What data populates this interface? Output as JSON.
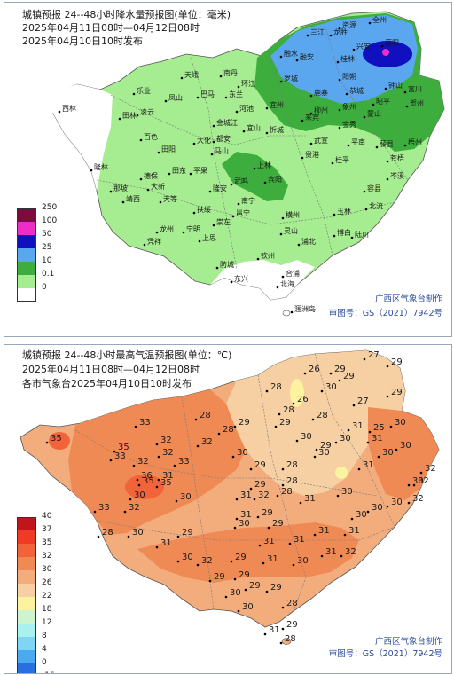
{
  "rain": {
    "title": "城镇预报 24--48小时降水量预报图(单位：毫米)",
    "time_range": "2025年04月11日08时—04月12日08时",
    "issued": "2025年04月10日10时发布",
    "legend": [
      {
        "label": "250",
        "color": "#7a0d3d"
      },
      {
        "label": "100",
        "color": "#ee2cc8"
      },
      {
        "label": "50",
        "color": "#1010c0"
      },
      {
        "label": "25",
        "color": "#5aa7ef"
      },
      {
        "label": "10",
        "color": "#3dae3d"
      },
      {
        "label": "0.1",
        "color": "#a6ec90"
      },
      {
        "label": "0",
        "color": "#ffffff"
      }
    ],
    "credit": "广西区气象台制作",
    "approval": "审图号：GS（2021）7942号",
    "places": [
      {
        "name": "全州"
      },
      {
        "name": "资源"
      },
      {
        "name": "兴安"
      },
      {
        "name": "三江"
      },
      {
        "name": "龙胜"
      },
      {
        "name": "灌阳"
      },
      {
        "name": "融水"
      },
      {
        "name": "融安"
      },
      {
        "name": "桂林"
      },
      {
        "name": "阳朔"
      },
      {
        "name": "恭城"
      },
      {
        "name": "钟山"
      },
      {
        "name": "富川"
      },
      {
        "name": "贺州"
      },
      {
        "name": "昭平"
      },
      {
        "name": "蒙山"
      },
      {
        "name": "鹿寨"
      },
      {
        "name": "柳州"
      },
      {
        "name": "象州"
      },
      {
        "name": "金秀"
      },
      {
        "name": "平南"
      },
      {
        "name": "藤县"
      },
      {
        "name": "梧州"
      },
      {
        "name": "苍梧"
      },
      {
        "name": "岑溪"
      },
      {
        "name": "容县"
      },
      {
        "name": "北流"
      },
      {
        "name": "玉林"
      },
      {
        "name": "博白"
      },
      {
        "name": "陆川"
      },
      {
        "name": "贵港"
      },
      {
        "name": "桂平"
      },
      {
        "name": "武宣"
      },
      {
        "name": "来宾"
      },
      {
        "name": "忻城"
      },
      {
        "name": "宜州"
      },
      {
        "name": "河池"
      },
      {
        "name": "环江"
      },
      {
        "name": "南丹"
      },
      {
        "name": "天峨"
      },
      {
        "name": "东兰"
      },
      {
        "name": "巴马"
      },
      {
        "name": "凤山"
      },
      {
        "name": "乐业"
      },
      {
        "name": "凌云"
      },
      {
        "name": "田林"
      },
      {
        "name": "西林"
      },
      {
        "name": "隆林"
      },
      {
        "name": "百色"
      },
      {
        "name": "田阳"
      },
      {
        "name": "田东"
      },
      {
        "name": "平果"
      },
      {
        "name": "德保"
      },
      {
        "name": "那坡"
      },
      {
        "name": "靖西"
      },
      {
        "name": "大新"
      },
      {
        "name": "天等"
      },
      {
        "name": "隆安"
      },
      {
        "name": "马山"
      },
      {
        "name": "上林"
      },
      {
        "name": "宾阳"
      },
      {
        "name": "武鸣"
      },
      {
        "name": "南宁"
      },
      {
        "name": "横州"
      },
      {
        "name": "邕宁"
      },
      {
        "name": "扶绥"
      },
      {
        "name": "崇左"
      },
      {
        "name": "龙州"
      },
      {
        "name": "凭祥"
      },
      {
        "name": "宁明"
      },
      {
        "name": "上思"
      },
      {
        "name": "防城"
      },
      {
        "name": "东兴"
      },
      {
        "name": "钦州"
      },
      {
        "name": "灵山"
      },
      {
        "name": "浦北"
      },
      {
        "name": "合浦"
      },
      {
        "name": "北海"
      },
      {
        "name": "涠洲岛"
      },
      {
        "name": "都安"
      },
      {
        "name": "大化"
      },
      {
        "name": "罗城"
      },
      {
        "name": "宜山"
      },
      {
        "name": "金城江"
      }
    ]
  },
  "temp": {
    "title": "城镇预报 24--48小时最高气温预报图(单位：℃)",
    "time_range": "2025年04月11日08时—04月12日08时",
    "issued": "各市气象台2025年04月10日10时发布",
    "legend": [
      {
        "label": "40",
        "color": "#c1151b"
      },
      {
        "label": "37",
        "color": "#ef3b24"
      },
      {
        "label": "35",
        "color": "#f2633a"
      },
      {
        "label": "32",
        "color": "#f08a55"
      },
      {
        "label": "30",
        "color": "#f3ad7d"
      },
      {
        "label": "26",
        "color": "#f6cfa3"
      },
      {
        "label": "22",
        "color": "#fbf3a0"
      },
      {
        "label": "18",
        "color": "#cdf4ce"
      },
      {
        "label": "12",
        "color": "#a8f2ee"
      },
      {
        "label": "8",
        "color": "#7fd6f4"
      },
      {
        "label": "4",
        "color": "#4aa9ef"
      },
      {
        "label": "0",
        "color": "#2a6fe0"
      },
      {
        "label": "-16",
        "color": "#1c2fd8"
      }
    ],
    "credit": "广西区气象台制作",
    "approval": "审图号：GS（2021）7942号",
    "values": [
      "26",
      "29",
      "27",
      "29",
      "29",
      "30",
      "28",
      "26",
      "29",
      "27",
      "28",
      "28",
      "29",
      "29",
      "30",
      "31",
      "28",
      "28",
      "25",
      "30",
      "30",
      "31",
      "29",
      "30",
      "32",
      "32",
      "33",
      "35",
      "35",
      "35",
      "31",
      "32",
      "33",
      "32",
      "30",
      "31",
      "30",
      "29",
      "28",
      "30",
      "28",
      "29",
      "28",
      "30",
      "36",
      "35",
      "33",
      "32",
      "30",
      "31",
      "32",
      "31",
      "29",
      "30",
      "32",
      "28",
      "30",
      "29",
      "30",
      "31",
      "31",
      "31",
      "32",
      "30",
      "32",
      "31",
      "31",
      "30",
      "30",
      "31",
      "30",
      "29",
      "29",
      "29",
      "30",
      "30",
      "28",
      "29",
      "31",
      "33",
      "32",
      "31",
      "30",
      "32",
      "29",
      "29",
      "29",
      "30",
      "31",
      "28"
    ]
  }
}
